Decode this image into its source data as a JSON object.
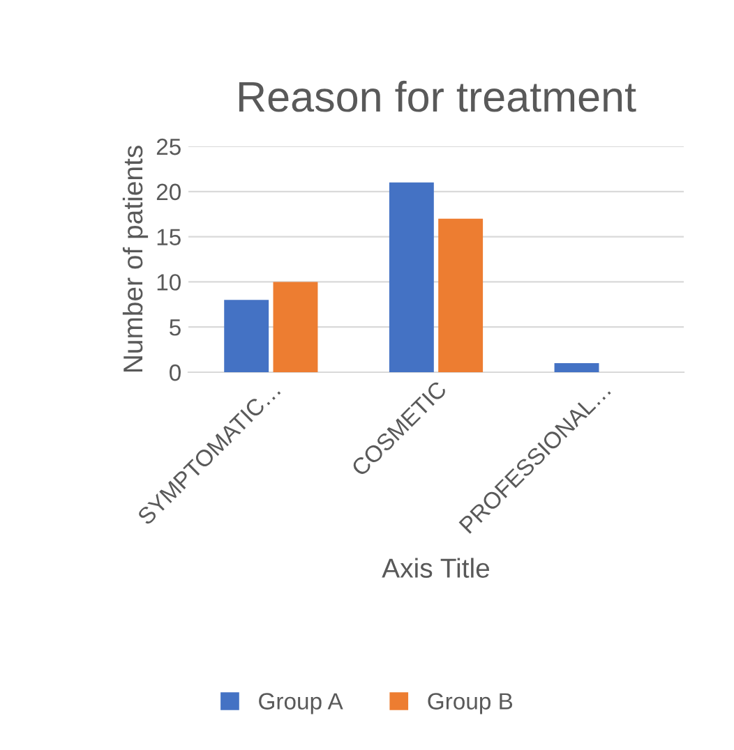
{
  "chart_data": {
    "type": "bar",
    "title": "Reason for treatment",
    "xlabel": "Axis Title",
    "ylabel": "Number of patients",
    "categories": [
      "SYMPTOMATIC…",
      "COSMETIC",
      "PROFESSIONAL…"
    ],
    "series": [
      {
        "name": "Group A",
        "color": "#4472c4",
        "values": [
          8,
          21,
          1
        ]
      },
      {
        "name": "Group B",
        "color": "#ed7d31",
        "values": [
          10,
          17,
          0
        ]
      }
    ],
    "ylim": [
      0,
      25
    ],
    "yticks": [
      0,
      5,
      10,
      15,
      20,
      25
    ],
    "grid": "y",
    "legend": "bottom"
  }
}
